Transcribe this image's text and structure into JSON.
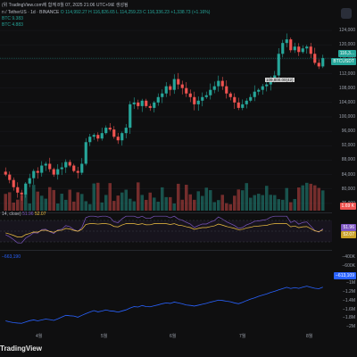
{
  "header": {
    "publish_line": "(위 TradingView.com에 함께 8월 07, 2025 21:06 UTC+9로 생성됨",
    "symbol_line": "n / TetherUS · 1d · BINANCE",
    "ohlc_line": "O 114,992.27  H 116,826.65  L 114,259.23  C 116,336.23  +1,338.73 (+1.16%)",
    "ind1_line": "BTC 9.383",
    "ind2_line": "BTC 4.883"
  },
  "price_axis": {
    "ticks": [
      "124,000",
      "120,000",
      "116,000",
      "112,000",
      "108,000",
      "104,000",
      "100,000",
      "96,000",
      "92,000",
      "88,000",
      "84,000",
      "80,000",
      "76,000"
    ],
    "badges": [
      {
        "text": "116,3...",
        "color": "#26a69a"
      },
      {
        "text": "BTCUSDT",
        "color": "#26a69a"
      },
      {
        "text": "1.69 K",
        "color": "#ef5350"
      }
    ]
  },
  "rsi": {
    "label": "14, close)",
    "value1": "51.96",
    "value2": "52.07",
    "badge1": "51.96",
    "badge2": "52.07",
    "levels": [
      "70.00",
      "50.00",
      "30.00"
    ]
  },
  "obv": {
    "ticks": [
      "−400K",
      "−600K",
      "−800K",
      "−1M",
      "−1.2M",
      "−1.4M",
      "−1.6M",
      "−1.8M",
      "−2M"
    ],
    "badge": "−613,109",
    "label": "−663,190"
  },
  "annotation": "109,800.00(42)",
  "x_axis": [
    "4월",
    "5월",
    "6월",
    "7월",
    "8월"
  ],
  "footer": {
    "brand": "TradingView"
  },
  "colors": {
    "up": "#26a69a",
    "down": "#ef5350",
    "rsi": "#7e57c2",
    "rsi_ma": "#f5c542",
    "obv": "#2962ff"
  },
  "chart_data": {
    "type": "candlestick",
    "y_range": [
      74000,
      125000
    ],
    "candles_close_approx": [
      84000,
      82500,
      80500,
      79000,
      78500,
      81500,
      83000,
      85000,
      84500,
      86500,
      87000,
      85500,
      84000,
      85500,
      86000,
      87500,
      86500,
      85000,
      84500,
      87000,
      93000,
      94500,
      95000,
      94000,
      95500,
      97000,
      96500,
      94500,
      93500,
      95500,
      97000,
      103500,
      104000,
      103000,
      104500,
      103000,
      102500,
      104000,
      105500,
      106500,
      108500,
      107500,
      110500,
      109000,
      108000,
      106500,
      105500,
      103500,
      104500,
      105500,
      106000,
      107500,
      108500,
      110000,
      108500,
      106500,
      105500,
      104000,
      102500,
      103500,
      104500,
      105500,
      107000,
      107500,
      108500,
      109000,
      110500,
      111500,
      117500,
      120500,
      121500,
      118500,
      119500,
      118000,
      119000,
      119500,
      117500,
      115000,
      114000,
      116300
    ],
    "rsi_range": [
      20,
      80
    ],
    "obv_range": [
      -2000000,
      -400000
    ]
  }
}
